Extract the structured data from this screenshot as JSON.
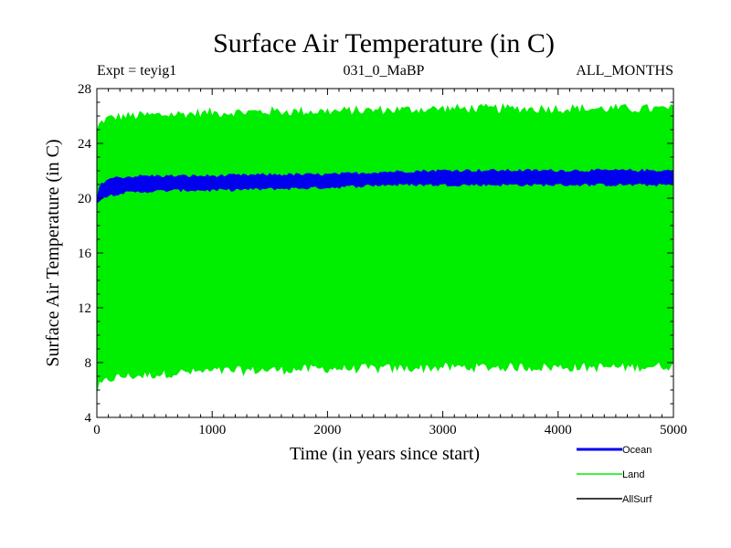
{
  "chart_data": {
    "type": "line",
    "title": "Surface Air Temperature (in C)",
    "subtitle_left": "Expt = teyig1",
    "subtitle_center": "031_0_MaBP",
    "subtitle_right": "ALL_MONTHS",
    "xlabel": "Time (in years since start)",
    "ylabel": "Surface Air Temperature (in C)",
    "xlim": [
      0,
      5000
    ],
    "ylim": [
      4,
      28
    ],
    "xticks": [
      0,
      1000,
      2000,
      3000,
      4000,
      5000
    ],
    "yticks": [
      4,
      8,
      12,
      16,
      20,
      24,
      28
    ],
    "grid": false,
    "legend_position": "bottom-right",
    "series": [
      {
        "name": "Land",
        "color": "#00ee00",
        "style": "envelope",
        "x": [
          0,
          20,
          50,
          100,
          200,
          400,
          700,
          1000,
          1500,
          2000,
          2500,
          3000,
          3500,
          4000,
          4500,
          5000
        ],
        "upper": [
          24.8,
          25.3,
          25.6,
          25.8,
          25.9,
          26.0,
          26.1,
          26.2,
          26.3,
          26.3,
          26.4,
          26.5,
          26.5,
          26.5,
          26.5,
          26.5
        ],
        "lower": [
          6.0,
          6.3,
          6.5,
          6.8,
          7.0,
          7.1,
          7.3,
          7.4,
          7.5,
          7.6,
          7.6,
          7.7,
          7.7,
          7.7,
          7.7,
          7.8
        ]
      },
      {
        "name": "Ocean",
        "color": "#0000ee",
        "style": "envelope",
        "x": [
          0,
          20,
          50,
          100,
          200,
          400,
          700,
          1000,
          1500,
          2000,
          2500,
          3000,
          3500,
          4000,
          4500,
          5000
        ],
        "upper": [
          19.9,
          20.7,
          21.1,
          21.4,
          21.5,
          21.6,
          21.6,
          21.6,
          21.7,
          21.7,
          21.9,
          22.0,
          22.0,
          22.0,
          22.0,
          22.0
        ],
        "lower": [
          19.6,
          19.9,
          20.1,
          20.2,
          20.4,
          20.5,
          20.6,
          20.6,
          20.7,
          20.8,
          21.0,
          21.0,
          21.0,
          21.0,
          21.0,
          21.0
        ]
      },
      {
        "name": "AllSurf",
        "color": "#000000",
        "style": "line",
        "x": [],
        "values": []
      }
    ]
  }
}
